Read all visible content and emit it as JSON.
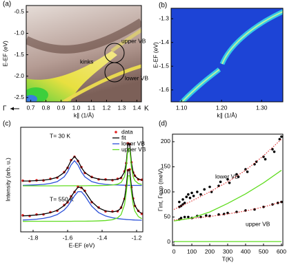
{
  "chart_data": [
    {
      "type": "image",
      "label": "(a)",
      "xlabel": "k∥ (1/Å)",
      "ylabel": "E-EF (eV)",
      "xlim": [
        0.67,
        1.43
      ],
      "ylim": [
        -2.6,
        -0.35
      ],
      "xticks": [
        0.7,
        0.8,
        0.9,
        {
          "value": 1,
          "label": "1.0"
        },
        1.1,
        1.2,
        1.3,
        1.4
      ],
      "yticks": [
        -0.5,
        {
          "value": -1,
          "label": "-1.0"
        },
        -1.5,
        {
          "value": -2,
          "label": "-2.0"
        },
        -2.5
      ],
      "annotations": [
        "kinks",
        "upper VB",
        "lower VB",
        "Γ",
        "K"
      ]
    },
    {
      "type": "image",
      "label": "(b)",
      "xlabel": "k∥ (1/Å)",
      "ylabel": "E-EF (eV)",
      "xlim": [
        1.074,
        1.353
      ],
      "ylim": [
        -1.65,
        -1.256
      ],
      "xticks": [
        {
          "value": 1.1,
          "label": "1.10"
        },
        {
          "value": 1.2,
          "label": "1.20"
        },
        {
          "value": 1.3,
          "label": "1.30"
        }
      ],
      "yticks": [
        -1.3,
        -1.4,
        -1.5,
        -1.6
      ]
    },
    {
      "type": "line",
      "label": "(c)",
      "xlabel": "E-EF  (eV)",
      "ylabel": "Intensity (arb. u.)",
      "xlim": [
        -1.872,
        -1.164
      ],
      "ylim": [
        0,
        10
      ],
      "xticks": [
        -1.8,
        -1.6,
        -1.4,
        -1.2
      ],
      "legend": "upper right",
      "annotations": [
        "T= 30 K",
        "T= 550 K"
      ],
      "x": [
        -1.86,
        -1.82,
        -1.78,
        -1.74,
        -1.7,
        -1.66,
        -1.62,
        -1.6,
        -1.58,
        -1.56,
        -1.54,
        -1.52,
        -1.5,
        -1.46,
        -1.42,
        -1.38,
        -1.34,
        -1.31,
        -1.29,
        -1.27,
        -1.26,
        -1.25,
        -1.24,
        -1.23,
        -1.22,
        -1.21,
        -1.19,
        -1.17
      ],
      "series": [
        {
          "name": "data",
          "color": "#e02020",
          "style": "dots",
          "values": [
            4.89,
            4.84,
            4.93,
            4.92,
            5.07,
            5.18,
            5.71,
            6.12,
            6.86,
            7.18,
            6.77,
            6.19,
            5.63,
            5.25,
            5.02,
            5.01,
            4.94,
            5.07,
            5.15,
            5.78,
            6.57,
            8.47,
            8.38,
            6.65,
            5.68,
            5.37,
            5.02,
            4.98
          ]
        },
        {
          "name": "fit",
          "color": "#000000",
          "style": "line",
          "values": [
            4.86,
            4.87,
            4.9,
            4.94,
            5.03,
            5.21,
            5.67,
            6.15,
            6.81,
            7.21,
            6.81,
            6.15,
            5.67,
            5.22,
            5.05,
            4.98,
            4.97,
            5.03,
            5.18,
            5.73,
            6.61,
            8.42,
            8.42,
            6.6,
            5.71,
            5.34,
            5.05,
            4.95
          ]
        },
        {
          "name": "lower VB",
          "color": "#2a4fd8",
          "style": "line",
          "values": [
            4.45,
            4.47,
            4.5,
            4.54,
            4.63,
            4.8,
            5.26,
            5.74,
            6.4,
            6.8,
            6.4,
            5.74,
            5.26,
            4.8,
            4.63,
            4.54,
            4.5,
            4.48,
            4.47,
            4.46,
            4.45,
            4.45,
            4.45,
            4.44,
            4.44,
            4.44,
            4.44,
            4.43
          ]
        },
        {
          "name": "upper VB",
          "color": "#5fdc1e",
          "style": "line",
          "values": [
            4.4,
            4.4,
            4.4,
            4.4,
            4.4,
            4.4,
            4.41,
            4.41,
            4.41,
            4.41,
            4.41,
            4.41,
            4.41,
            4.42,
            4.42,
            4.44,
            4.48,
            4.56,
            4.72,
            5.27,
            6.16,
            7.97,
            7.97,
            6.16,
            5.27,
            4.9,
            4.62,
            4.52
          ]
        },
        {
          "color": "#e02020",
          "style": "dots",
          "values": [
            1.58,
            1.52,
            1.66,
            1.67,
            1.88,
            2.02,
            2.56,
            2.82,
            3.39,
            3.81,
            4.31,
            4.21,
            3.92,
            2.84,
            2.33,
            1.96,
            1.95,
            1.97,
            2.32,
            3.16,
            4.41,
            5.89,
            5.97,
            4.28,
            3.19,
            2.48,
            2.01,
            1.73
          ]
        },
        {
          "color": "#000000",
          "style": "line",
          "values": [
            1.53,
            1.56,
            1.62,
            1.7,
            1.83,
            2.06,
            2.51,
            2.86,
            3.34,
            3.86,
            4.26,
            4.26,
            3.87,
            2.88,
            2.29,
            2.0,
            1.91,
            2.0,
            2.28,
            3.2,
            4.36,
            5.94,
            5.92,
            4.32,
            3.15,
            2.52,
            1.97,
            1.76
          ]
        },
        {
          "color": "#2a4fd8",
          "style": "line",
          "values": [
            1.13,
            1.16,
            1.21,
            1.29,
            1.42,
            1.65,
            2.09,
            2.45,
            2.92,
            3.45,
            3.84,
            3.84,
            3.45,
            2.45,
            1.84,
            1.52,
            1.35,
            1.27,
            1.23,
            1.2,
            1.18,
            1.17,
            1.16,
            1.15,
            1.14,
            1.13,
            1.12,
            1.11
          ]
        },
        {
          "color": "#5fdc1e",
          "style": "line",
          "values": [
            1.0,
            1.01,
            1.01,
            1.01,
            1.01,
            1.01,
            1.01,
            1.01,
            1.01,
            1.02,
            1.02,
            1.02,
            1.02,
            1.03,
            1.05,
            1.08,
            1.16,
            1.34,
            1.65,
            2.6,
            3.77,
            5.36,
            5.36,
            3.77,
            2.6,
            1.98,
            1.46,
            1.26
          ]
        }
      ]
    },
    {
      "type": "scatter",
      "label": "(d)",
      "xlabel": "T(K)",
      "ylabel": "Γint, Γexp (meV)",
      "xlim": [
        -8,
        608
      ],
      "ylim": [
        -7,
        215
      ],
      "xticks": [
        0,
        100,
        200,
        300,
        400,
        500,
        600
      ],
      "yticks": [
        0,
        50,
        100,
        150,
        200
      ],
      "annotations": [
        "lower VB",
        "upper VB"
      ],
      "series": [
        {
          "color": "#000000",
          "style": "dots",
          "x": [
            30,
            30,
            40,
            50,
            50,
            60,
            70,
            80,
            90,
            100,
            110,
            130,
            150,
            170,
            200,
            210,
            250,
            260,
            300,
            310,
            350,
            360,
            400,
            410,
            450,
            460,
            500,
            510,
            550,
            560,
            590,
            600
          ],
          "values": [
            70,
            80,
            72,
            85,
            75,
            78,
            90,
            95,
            88,
            98,
            92,
            100,
            95,
            105,
            110,
            100,
            112,
            120,
            125,
            118,
            135,
            130,
            145,
            140,
            155,
            160,
            170,
            165,
            185,
            180,
            205,
            210
          ]
        },
        {
          "color": "#000000",
          "style": "dots",
          "x": [
            30,
            40,
            60,
            80,
            100,
            130,
            150,
            180,
            200,
            250,
            280,
            300,
            350,
            400,
            450,
            500,
            550,
            580,
            600
          ],
          "values": [
            45,
            48,
            50,
            50,
            48,
            52,
            50,
            53,
            52,
            55,
            56,
            58,
            60,
            63,
            65,
            70,
            75,
            78,
            80
          ]
        },
        {
          "color": "#e03030",
          "style": "dotted",
          "x": [
            0,
            100,
            200,
            300,
            400,
            500,
            600
          ],
          "values": [
            65,
            82,
            100,
            120,
            143,
            172,
            205
          ]
        },
        {
          "color": "#e03030",
          "style": "dotted",
          "x": [
            0,
            100,
            200,
            300,
            400,
            500,
            600
          ],
          "values": [
            44,
            47,
            51,
            56,
            62,
            70,
            80
          ]
        },
        {
          "color": "#5fdc1e",
          "style": "line",
          "x": [
            0,
            100,
            200,
            300,
            400,
            500,
            600
          ],
          "values": [
            42,
            48,
            60,
            77,
            96,
            118,
            143
          ]
        },
        {
          "color": "#5fdc1e",
          "style": "line",
          "x": [
            0,
            100,
            200,
            300,
            400,
            500,
            600
          ],
          "values": [
            1,
            1,
            1,
            1,
            1,
            1,
            1
          ]
        }
      ]
    }
  ]
}
